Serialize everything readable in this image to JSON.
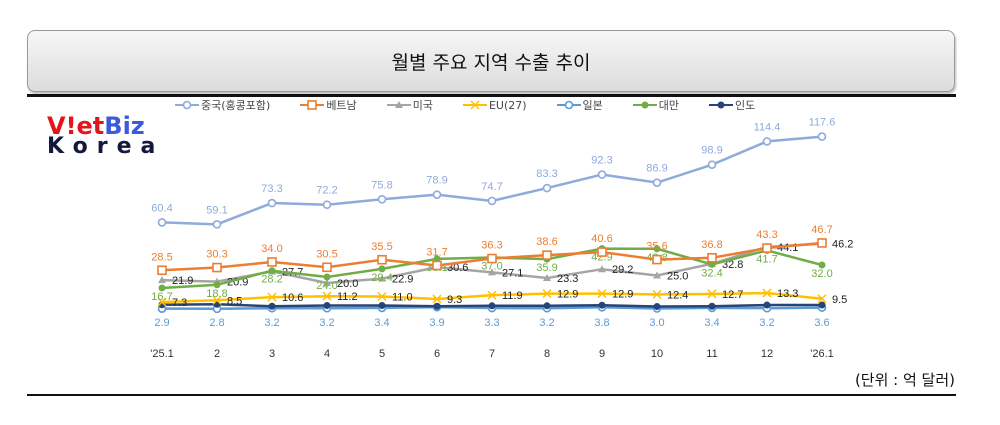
{
  "title": "월별 주요 지역 수출 추이",
  "logo": {
    "line1_a": "V!et",
    "line1_b": "Biz",
    "line2": "Korea"
  },
  "unit": "(단위 : 억 달러)",
  "chart_data": {
    "type": "line",
    "title": "",
    "xlabel": "",
    "ylabel": "",
    "ylim": [
      0,
      125
    ],
    "grid": false,
    "legend_position": "top",
    "categories": [
      "'25.1",
      "2",
      "3",
      "4",
      "5",
      "6",
      "7",
      "8",
      "9",
      "10",
      "11",
      "12",
      "'26.1"
    ],
    "series": [
      {
        "name": "중국(홍콩포함)",
        "color": "#8faadc",
        "marker": "circle-open",
        "labeled": true,
        "values": [
          60.4,
          59.1,
          73.3,
          72.2,
          75.8,
          78.9,
          74.7,
          83.3,
          92.3,
          86.9,
          98.9,
          114.4,
          117.6
        ]
      },
      {
        "name": "베트남",
        "color": "#ed7d31",
        "marker": "square-open",
        "labeled": true,
        "values": [
          28.5,
          30.3,
          34.0,
          30.5,
          35.5,
          31.7,
          36.3,
          38.6,
          40.6,
          35.6,
          36.8,
          43.3,
          46.7
        ]
      },
      {
        "name": "미국",
        "color": "#a5a5a5",
        "marker": "triangle",
        "labeled": true,
        "label_color": "#222",
        "values": [
          21.9,
          20.9,
          27.7,
          20.0,
          22.9,
          30.6,
          27.1,
          23.3,
          29.2,
          25.0,
          32.8,
          44.1,
          46.2
        ]
      },
      {
        "name": "EU(27)",
        "color": "#ffc000",
        "marker": "cross",
        "labeled": true,
        "label_color": "#222",
        "values": [
          7.3,
          8.5,
          10.6,
          11.2,
          11.0,
          9.3,
          11.9,
          12.9,
          12.9,
          12.4,
          12.7,
          13.3,
          9.5
        ]
      },
      {
        "name": "일본",
        "color": "#5b9bd5",
        "marker": "circle-open",
        "labeled": true,
        "values": [
          2.9,
          2.8,
          3.2,
          3.2,
          3.4,
          3.9,
          3.3,
          3.2,
          3.8,
          3.0,
          3.4,
          3.2,
          3.6
        ]
      },
      {
        "name": "대만",
        "color": "#70ad47",
        "marker": "dot",
        "labeled": true,
        "values": [
          16.7,
          18.8,
          28.2,
          24.0,
          29.4,
          36.1,
          37.0,
          35.9,
          42.9,
          42.8,
          32.4,
          41.7,
          32.0
        ]
      },
      {
        "name": "인도",
        "color": "#264478",
        "marker": "dot",
        "labeled": false,
        "values": [
          5.5,
          5.8,
          4.5,
          5.0,
          5.0,
          4.5,
          4.8,
          4.8,
          5.2,
          4.3,
          4.5,
          5.3,
          5.3
        ]
      }
    ]
  }
}
